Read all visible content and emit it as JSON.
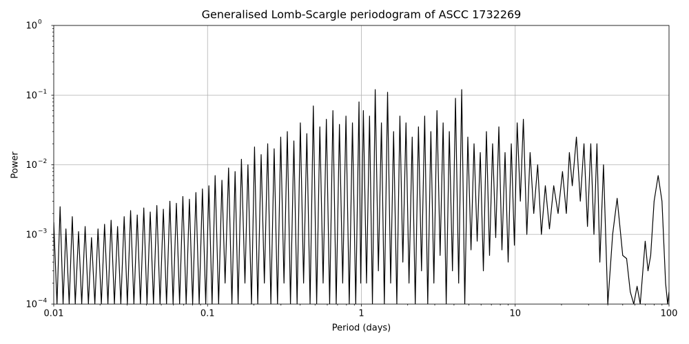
{
  "chart_data": {
    "type": "line",
    "title": "Generalised Lomb-Scargle periodogram of ASCC 1732269",
    "xlabel": "Period (days)",
    "ylabel": "Power",
    "xscale": "log",
    "yscale": "log",
    "grid": true,
    "color": "#000000",
    "xlim": [
      0.01,
      100
    ],
    "ylim": [
      0.0001,
      1
    ],
    "xticks": [
      0.01,
      0.1,
      1,
      10,
      100
    ],
    "yticks": [
      {
        "value": 0.0001,
        "label": "10",
        "exponent": "−4"
      },
      {
        "value": 0.001,
        "label": "10",
        "exponent": "−3"
      },
      {
        "value": 0.01,
        "label": "10",
        "exponent": "−2"
      },
      {
        "value": 0.1,
        "label": "10",
        "exponent": "−1"
      },
      {
        "value": 1,
        "label": "10",
        "exponent": "0"
      }
    ],
    "xminorticks": [
      0.02,
      0.03,
      0.04,
      0.05,
      0.06,
      0.07,
      0.08,
      0.09,
      0.2,
      0.3,
      0.4,
      0.5,
      0.6,
      0.7,
      0.8,
      0.9,
      2,
      3,
      4,
      5,
      6,
      7,
      8,
      9,
      20,
      30,
      40,
      50,
      60,
      70,
      80,
      90
    ],
    "yminorticks": [
      0.0002,
      0.0003,
      0.0004,
      0.0005,
      0.0006,
      0.0007,
      0.0008,
      0.0009,
      0.002,
      0.003,
      0.004,
      0.005,
      0.006,
      0.007,
      0.008,
      0.009,
      0.02,
      0.03,
      0.04,
      0.05,
      0.06,
      0.07,
      0.08,
      0.09,
      0.2,
      0.3,
      0.4,
      0.5,
      0.6,
      0.7,
      0.8,
      0.9
    ],
    "x": [
      0.01,
      0.0105,
      0.011,
      0.0115,
      0.012,
      0.0126,
      0.0132,
      0.0138,
      0.0145,
      0.0152,
      0.016,
      0.0168,
      0.0176,
      0.0185,
      0.0194,
      0.0204,
      0.0214,
      0.0225,
      0.0236,
      0.0248,
      0.026,
      0.0273,
      0.0287,
      0.0301,
      0.0316,
      0.0332,
      0.0349,
      0.0366,
      0.0385,
      0.0404,
      0.0424,
      0.0445,
      0.0468,
      0.0491,
      0.0516,
      0.0541,
      0.0569,
      0.0597,
      0.0627,
      0.0658,
      0.0691,
      0.0726,
      0.0762,
      0.08,
      0.084,
      0.0882,
      0.0926,
      0.0973,
      0.102,
      0.107,
      0.112,
      0.118,
      0.124,
      0.13,
      0.137,
      0.144,
      0.151,
      0.158,
      0.166,
      0.175,
      0.183,
      0.193,
      0.202,
      0.212,
      0.223,
      0.234,
      0.246,
      0.258,
      0.271,
      0.285,
      0.299,
      0.314,
      0.33,
      0.346,
      0.364,
      0.382,
      0.401,
      0.421,
      0.442,
      0.464,
      0.487,
      0.512,
      0.537,
      0.564,
      0.592,
      0.622,
      0.653,
      0.686,
      0.72,
      0.756,
      0.794,
      0.834,
      0.875,
      0.919,
      0.965,
      0.99,
      1.03,
      1.08,
      1.13,
      1.18,
      1.23,
      1.29,
      1.35,
      1.41,
      1.48,
      1.55,
      1.62,
      1.7,
      1.78,
      1.86,
      1.95,
      2.04,
      2.14,
      2.24,
      2.35,
      2.46,
      2.58,
      2.7,
      2.83,
      2.96,
      3.1,
      3.25,
      3.4,
      3.56,
      3.73,
      3.91,
      4.09,
      4.29,
      4.49,
      4.7,
      4.92,
      5.16,
      5.4,
      5.66,
      5.93,
      6.21,
      6.5,
      6.81,
      7.13,
      7.47,
      7.83,
      8.2,
      8.59,
      9.0,
      9.43,
      9.88,
      10.3,
      10.8,
      11.3,
      11.9,
      12.5,
      13.2,
      14,
      14.8,
      15.7,
      16.7,
      17.8,
      19,
      20.3,
      21.5,
      22.5,
      23.5,
      25,
      26.5,
      28,
      29.5,
      31,
      32.5,
      34,
      35.5,
      37.5,
      40,
      43,
      46,
      50,
      53,
      56,
      59,
      62,
      65,
      70,
      73,
      76,
      80,
      85,
      90,
      95,
      98,
      100
    ],
    "values": [
      0.0015,
      0.0001,
      0.0025,
      0.0001,
      0.0012,
      0.0001,
      0.0018,
      0.0001,
      0.0011,
      0.0001,
      0.0013,
      0.0001,
      0.0009,
      0.0001,
      0.0012,
      0.0001,
      0.0014,
      0.0001,
      0.0016,
      0.0001,
      0.0013,
      0.0001,
      0.0018,
      0.0001,
      0.0022,
      0.0001,
      0.0019,
      0.0001,
      0.0024,
      0.0001,
      0.0021,
      0.0001,
      0.0026,
      0.0001,
      0.0023,
      0.0001,
      0.003,
      0.0001,
      0.0028,
      0.0001,
      0.0035,
      0.0001,
      0.0032,
      0.0001,
      0.004,
      0.0001,
      0.0045,
      0.0001,
      0.005,
      0.0001,
      0.007,
      0.0001,
      0.006,
      0.0002,
      0.009,
      0.0001,
      0.008,
      0.0001,
      0.012,
      0.0002,
      0.01,
      0.0001,
      0.018,
      0.0001,
      0.014,
      0.0002,
      0.02,
      0.0001,
      0.017,
      0.0001,
      0.025,
      0.0002,
      0.03,
      0.0001,
      0.022,
      0.0001,
      0.04,
      0.0002,
      0.028,
      0.0001,
      0.07,
      0.0001,
      0.035,
      0.0002,
      0.045,
      0.0001,
      0.06,
      0.0001,
      0.038,
      0.0002,
      0.05,
      0.0001,
      0.04,
      0.0001,
      0.08,
      0.0002,
      0.06,
      0.0002,
      0.05,
      0.0001,
      0.12,
      0.0003,
      0.04,
      0.0001,
      0.11,
      0.0002,
      0.03,
      0.0001,
      0.05,
      0.0004,
      0.04,
      0.0002,
      0.025,
      0.0001,
      0.035,
      0.0003,
      0.05,
      0.0001,
      0.03,
      0.0002,
      0.06,
      0.0005,
      0.04,
      0.0001,
      0.03,
      0.0003,
      0.09,
      0.0002,
      0.12,
      0.0001,
      0.025,
      0.0006,
      0.02,
      0.0008,
      0.015,
      0.0003,
      0.03,
      0.0005,
      0.02,
      0.0009,
      0.035,
      0.0006,
      0.015,
      0.0004,
      0.02,
      0.0007,
      0.04,
      0.003,
      0.045,
      0.001,
      0.015,
      0.002,
      0.01,
      0.001,
      0.005,
      0.0012,
      0.005,
      0.002,
      0.008,
      0.002,
      0.015,
      0.005,
      0.025,
      0.003,
      0.02,
      0.0013,
      0.02,
      0.001,
      0.02,
      0.0004,
      0.01,
      0.0001,
      0.001,
      0.0033,
      0.0005,
      0.00045,
      0.00015,
      0.0001,
      0.00018,
      0.0001,
      0.0008,
      0.0003,
      0.0005,
      0.003,
      0.007,
      0.003,
      0.0002,
      0.0001,
      0.00015
    ]
  }
}
